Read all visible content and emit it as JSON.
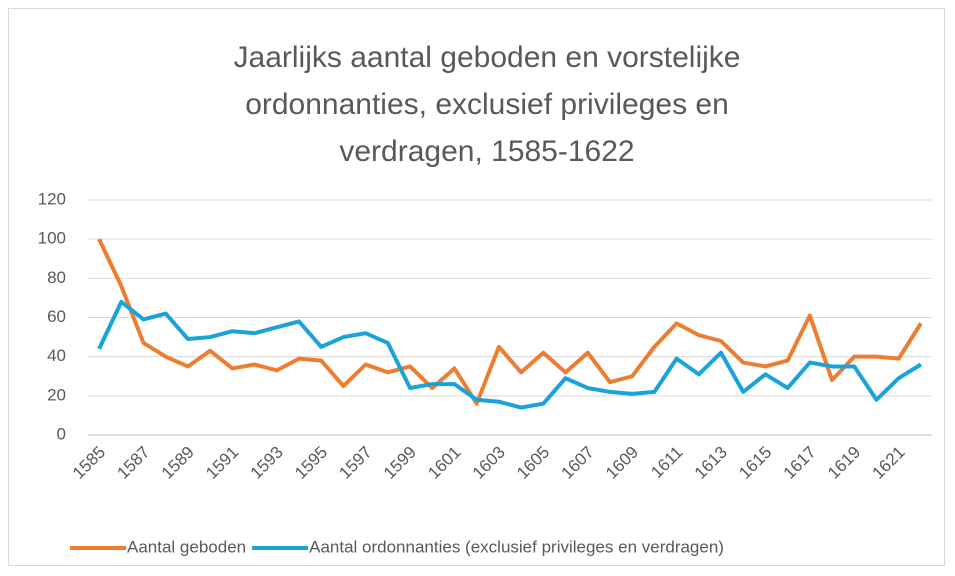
{
  "chart_data": {
    "type": "line",
    "title": "Jaarlijks aantal geboden en vorstelijke ordonnanties, exclusief privileges en verdragen, 1585-1622",
    "categories": [
      "1585",
      null,
      "1587",
      null,
      "1589",
      null,
      "1591",
      null,
      "1593",
      null,
      "1595",
      null,
      "1597",
      null,
      "1599",
      null,
      "1601",
      null,
      "1603",
      null,
      "1605",
      null,
      "1607",
      null,
      "1609",
      null,
      "1611",
      null,
      "1613",
      null,
      "1615",
      null,
      "1617",
      null,
      "1619",
      null,
      "1621",
      null
    ],
    "series": [
      {
        "name": "Aantal geboden",
        "color": "#ed7d31",
        "values": [
          100,
          76,
          47,
          40,
          35,
          43,
          34,
          36,
          33,
          39,
          38,
          25,
          36,
          32,
          35,
          24,
          34,
          16,
          45,
          32,
          42,
          32,
          42,
          27,
          30,
          45,
          57,
          51,
          48,
          37,
          35,
          38,
          61,
          28,
          40,
          40,
          39,
          57
        ]
      },
      {
        "name": "Aantal ordonnanties (exclusief privileges en verdragen)",
        "color": "#1aa3d9",
        "values": [
          44,
          68,
          59,
          62,
          49,
          50,
          53,
          52,
          55,
          58,
          45,
          50,
          52,
          47,
          24,
          26,
          26,
          18,
          17,
          14,
          16,
          29,
          24,
          22,
          21,
          22,
          39,
          31,
          42,
          22,
          31,
          24,
          37,
          35,
          35,
          18,
          29,
          36
        ]
      }
    ],
    "ylim": [
      0,
      120
    ],
    "yticks": [
      0,
      20,
      40,
      60,
      80,
      100,
      120
    ],
    "grid": true,
    "legend": "bottom"
  }
}
